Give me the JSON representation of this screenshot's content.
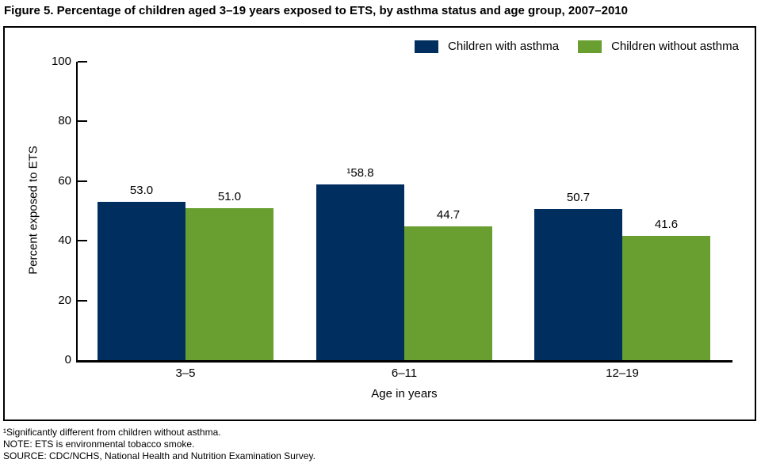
{
  "figure": {
    "title": "Figure 5. Percentage of children aged 3–19 years exposed to ETS, by asthma status and age group, 2007–2010"
  },
  "chart_data": {
    "type": "bar",
    "title": "Figure 5. Percentage of children aged 3–19 years exposed to ETS, by asthma status and age group, 2007–2010",
    "categories": [
      "3–5",
      "6–11",
      "12–19"
    ],
    "series": [
      {
        "name": "Children with asthma",
        "color": "#002f5f",
        "values": [
          53.0,
          58.8,
          50.7
        ],
        "labels": [
          "53.0",
          "¹58.8",
          "50.7"
        ]
      },
      {
        "name": "Children without asthma",
        "color": "#699f31",
        "values": [
          51.0,
          44.7,
          41.6
        ],
        "labels": [
          "51.0",
          "44.7",
          "41.6"
        ]
      }
    ],
    "xlabel": "Age in years",
    "ylabel": "Percent exposed to ETS",
    "ylim": [
      0,
      100
    ],
    "yticks": [
      0,
      20,
      40,
      60,
      80,
      100
    ],
    "grid": false,
    "legend_position": "top-right",
    "bar_value_labels_shown": true
  },
  "footnotes": [
    "¹Significantly different from children without asthma.",
    "NOTE: ETS is environmental tobacco smoke.",
    "SOURCE: CDC/NCHS, National Health and Nutrition Examination Survey."
  ]
}
